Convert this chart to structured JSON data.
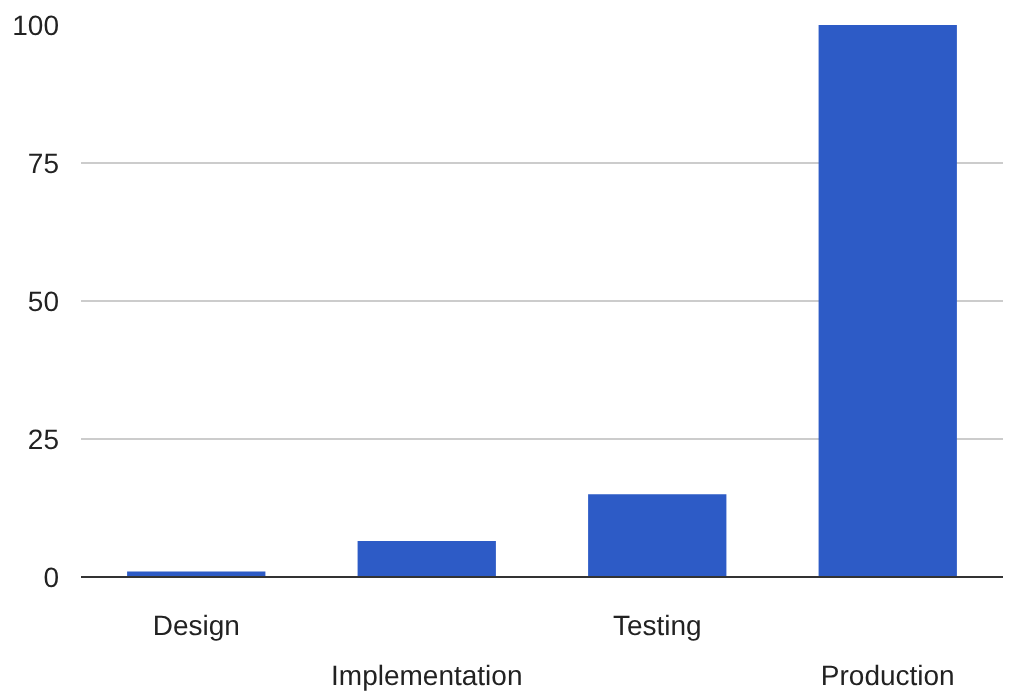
{
  "chart_data": {
    "type": "bar",
    "categories": [
      "Design",
      "Implementation",
      "Testing",
      "Production"
    ],
    "values": [
      1,
      6.5,
      15,
      100
    ],
    "color": "#2d5bc6",
    "ylim": [
      0,
      100
    ],
    "yticks": [
      0,
      25,
      50,
      75,
      100
    ],
    "grid": "y"
  }
}
